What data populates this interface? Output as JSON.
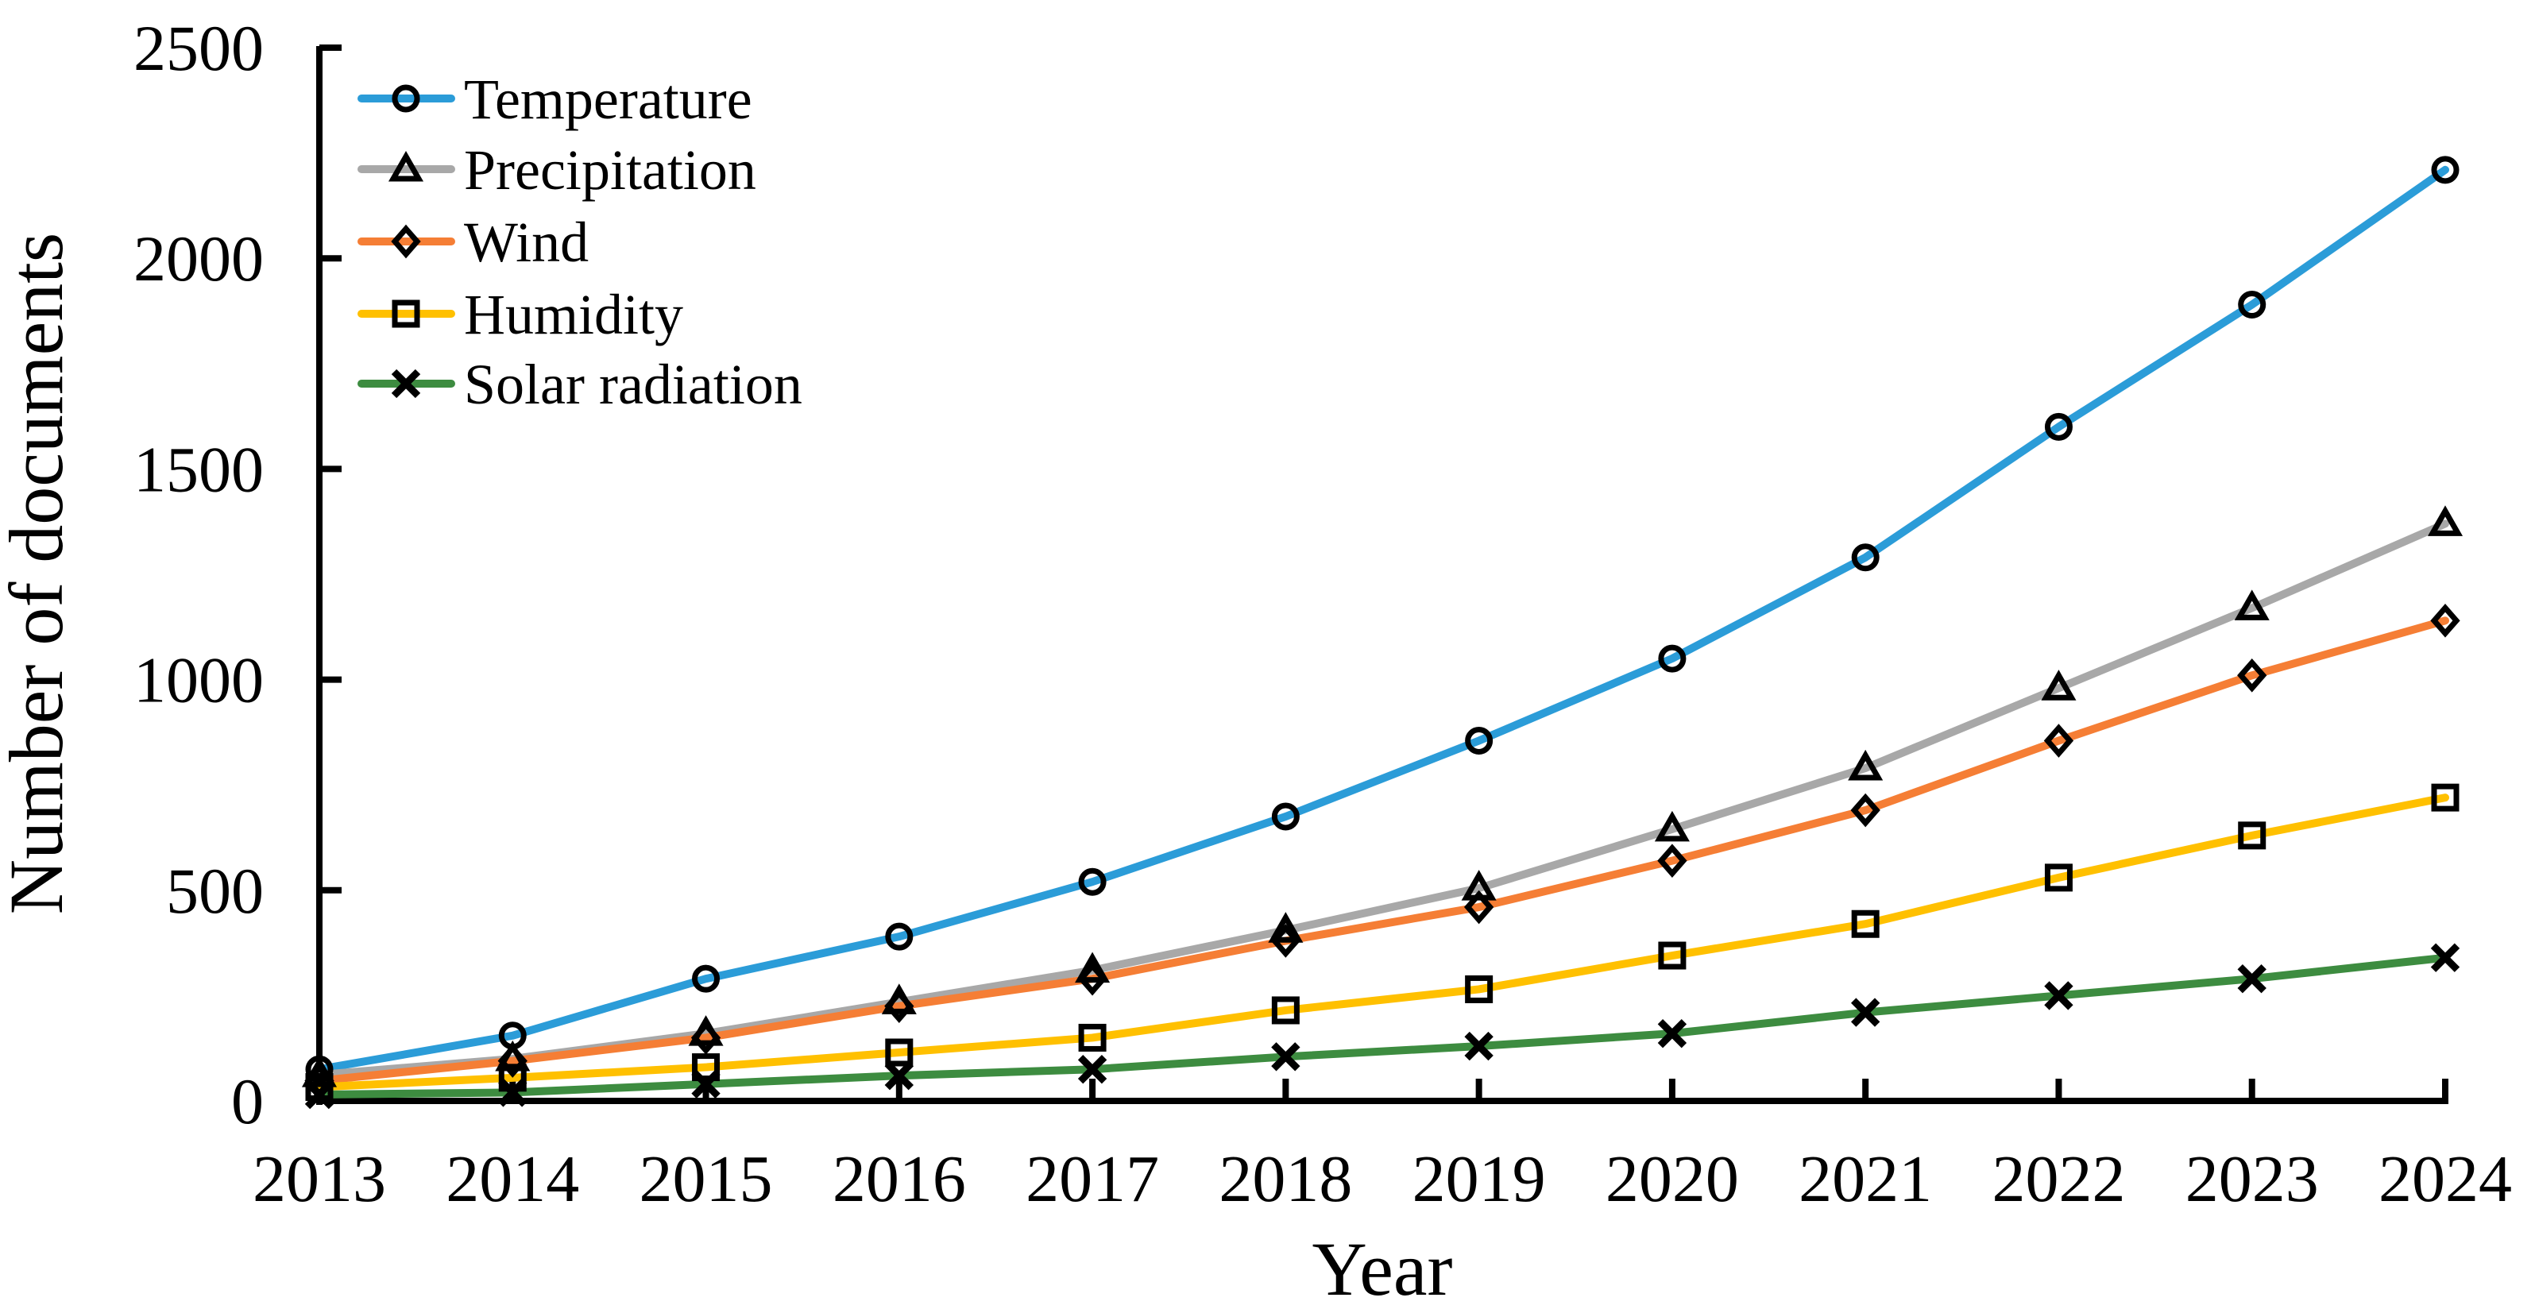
{
  "chart_data": {
    "type": "line",
    "title": "",
    "xlabel": "Year",
    "ylabel": "Number of documents",
    "x": [
      2013,
      2014,
      2015,
      2016,
      2017,
      2018,
      2019,
      2020,
      2021,
      2022,
      2023,
      2024
    ],
    "xtick_labels": [
      "2013",
      "2014",
      "2015",
      "2016",
      "2017",
      "2018",
      "2019",
      "2020",
      "2021",
      "2022",
      "2023",
      "2024"
    ],
    "ylim": [
      0,
      2500
    ],
    "ytick_step": 500,
    "ytick_labels": [
      "0",
      "500",
      "1000",
      "1500",
      "2000",
      "2500"
    ],
    "grid": false,
    "legend_position": "upper-left-inside",
    "axis_color": "#000000",
    "marker_edge_color": "#000000",
    "series": [
      {
        "name": "Temperature",
        "color": "#2B9CD8",
        "marker": "circle",
        "values": [
          75,
          155,
          290,
          390,
          520,
          675,
          855,
          1050,
          1290,
          1600,
          1890,
          2210
        ]
      },
      {
        "name": "Precipitation",
        "color": "#A8A8A8",
        "marker": "triangle",
        "values": [
          62,
          100,
          160,
          235,
          310,
          405,
          505,
          645,
          790,
          980,
          1170,
          1370
        ]
      },
      {
        "name": "Wind",
        "color": "#F57E35",
        "marker": "diamond",
        "values": [
          48,
          95,
          150,
          225,
          290,
          380,
          460,
          570,
          690,
          855,
          1010,
          1140
        ]
      },
      {
        "name": "Humidity",
        "color": "#FFC000",
        "marker": "square",
        "values": [
          33,
          55,
          80,
          115,
          150,
          215,
          265,
          345,
          420,
          530,
          630,
          720
        ]
      },
      {
        "name": "Solar radiation",
        "color": "#3D8C40",
        "marker": "x",
        "values": [
          15,
          20,
          40,
          60,
          75,
          105,
          130,
          160,
          210,
          250,
          290,
          340
        ]
      }
    ]
  }
}
